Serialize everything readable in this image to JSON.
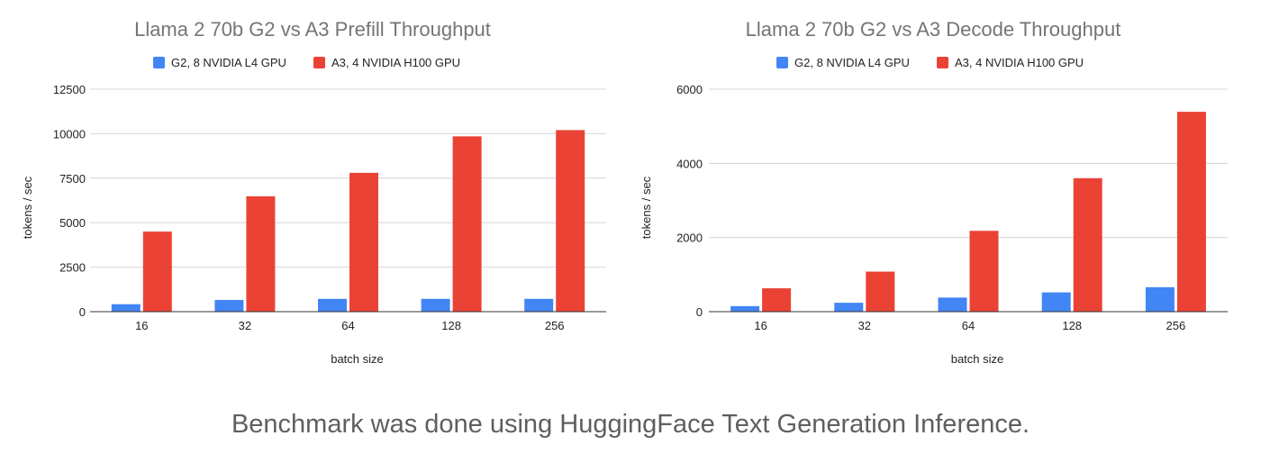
{
  "colors": {
    "g2": "#4285F4",
    "a3": "#EA4335",
    "grid": "#d6d6d6",
    "caption": "#5f5f5f"
  },
  "caption": "Benchmark was done using HuggingFace Text Generation Inference.",
  "chart_data": [
    {
      "type": "bar",
      "title": "Llama 2 70b G2 vs A3 Prefill Throughput",
      "xlabel": "batch size",
      "ylabel": "tokens / sec",
      "categories": [
        "16",
        "32",
        "64",
        "128",
        "256"
      ],
      "ylim": [
        0,
        12500
      ],
      "yticks": [
        0,
        2500,
        5000,
        7500,
        10000,
        12500
      ],
      "grid": true,
      "legend_position": "top",
      "series": [
        {
          "name": "G2, 8 NVIDIA L4 GPU",
          "values": [
            420,
            660,
            720,
            720,
            720
          ]
        },
        {
          "name": "A3, 4 NVIDIA H100 GPU",
          "values": [
            4500,
            6480,
            7800,
            9850,
            10200
          ]
        }
      ]
    },
    {
      "type": "bar",
      "title": "Llama 2 70b G2 vs A3 Decode Throughput",
      "xlabel": "batch size",
      "ylabel": "tokens / sec",
      "categories": [
        "16",
        "32",
        "64",
        "128",
        "256"
      ],
      "ylim": [
        0,
        6000
      ],
      "yticks": [
        0,
        2000,
        4000,
        6000
      ],
      "grid": true,
      "legend_position": "top",
      "series": [
        {
          "name": "G2, 8 NVIDIA L4 GPU",
          "values": [
            150,
            240,
            380,
            520,
            660
          ]
        },
        {
          "name": "A3, 4 NVIDIA H100 GPU",
          "values": [
            630,
            1080,
            2180,
            3600,
            5390
          ]
        }
      ]
    }
  ]
}
